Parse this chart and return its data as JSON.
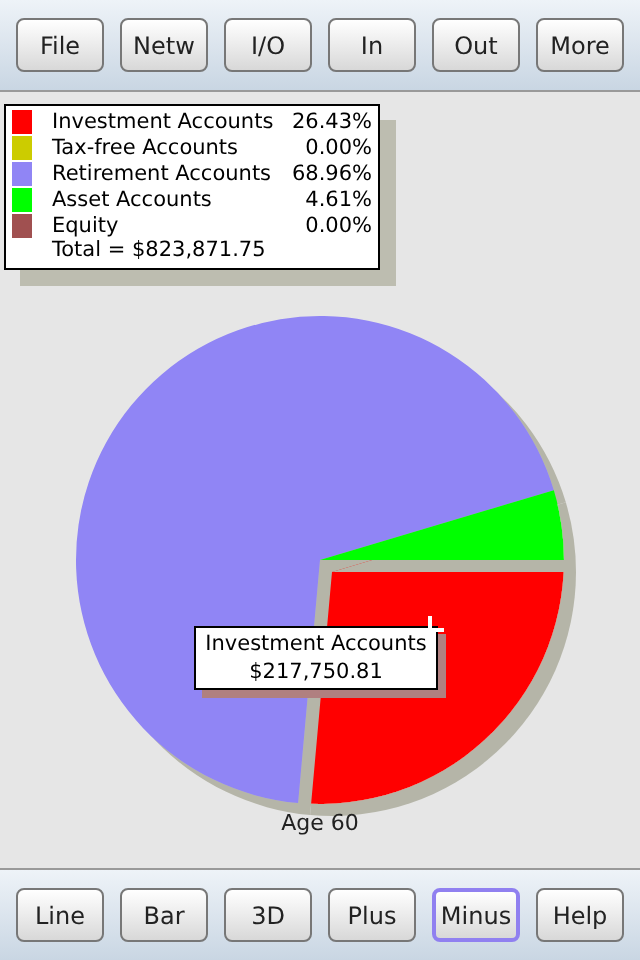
{
  "chart_data": {
    "type": "pie",
    "title": "Age 60",
    "categories": [
      "Investment Accounts",
      "Tax-free Accounts",
      "Retirement Accounts",
      "Asset Accounts",
      "Equity"
    ],
    "values": [
      26.43,
      0,
      68.96,
      4.61,
      0
    ],
    "colors": [
      "#ff0000",
      "#cccc00",
      "#9085f5",
      "#00ff00",
      "#a05050"
    ],
    "value_labels": [
      "26.43%",
      "0.00%",
      "68.96%",
      "4.61%",
      "0.00%"
    ],
    "legend": "top left",
    "annotations": [
      "Total = $823,871.75",
      "Investment Accounts\n$217,750.81",
      "File",
      "Netw",
      "I/O",
      "In",
      "Out",
      "More",
      "Line",
      "Bar",
      "3D",
      "Plus",
      "Minus",
      "Help"
    ]
  }
}
